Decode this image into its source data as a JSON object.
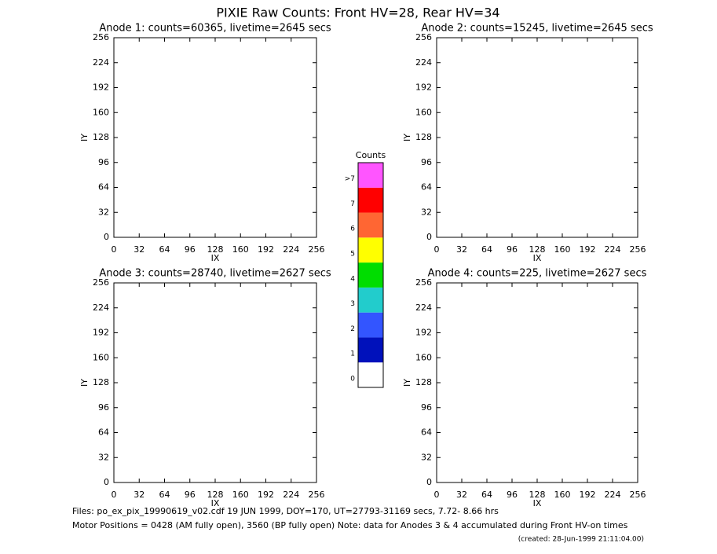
{
  "title": "PIXIE Raw Counts:  Front HV=28, Rear HV=34",
  "chart_data": [
    {
      "type": "heatmap",
      "title": "Anode 1: counts=60365, livetime=2645 secs",
      "xlabel": "IX",
      "ylabel": "IY",
      "xlim": [
        0,
        256
      ],
      "ylim": [
        0,
        256
      ],
      "xticks": [
        0,
        32,
        64,
        96,
        128,
        160,
        192,
        224,
        256
      ],
      "yticks": [
        0,
        32,
        64,
        96,
        128,
        160,
        192,
        224,
        256
      ]
    },
    {
      "type": "heatmap",
      "title": "Anode 2: counts=15245, livetime=2645 secs",
      "xlabel": "IX",
      "ylabel": "IY",
      "xlim": [
        0,
        256
      ],
      "ylim": [
        0,
        256
      ],
      "xticks": [
        0,
        32,
        64,
        96,
        128,
        160,
        192,
        224,
        256
      ],
      "yticks": [
        0,
        32,
        64,
        96,
        128,
        160,
        192,
        224,
        256
      ]
    },
    {
      "type": "heatmap",
      "title": "Anode 3: counts=28740, livetime=2627 secs",
      "xlabel": "IX",
      "ylabel": "IY",
      "xlim": [
        0,
        256
      ],
      "ylim": [
        0,
        256
      ],
      "xticks": [
        0,
        32,
        64,
        96,
        128,
        160,
        192,
        224,
        256
      ],
      "yticks": [
        0,
        32,
        64,
        96,
        128,
        160,
        192,
        224,
        256
      ]
    },
    {
      "type": "heatmap",
      "title": "Anode 4: counts=225, livetime=2627 secs",
      "xlabel": "IX",
      "ylabel": "IY",
      "xlim": [
        0,
        256
      ],
      "ylim": [
        0,
        256
      ],
      "xticks": [
        0,
        32,
        64,
        96,
        128,
        160,
        192,
        224,
        256
      ],
      "yticks": [
        0,
        32,
        64,
        96,
        128,
        160,
        192,
        224,
        256
      ]
    }
  ],
  "colorbar": {
    "title": "Counts",
    "labels": [
      "0",
      "1",
      "2",
      "3",
      "4",
      "5",
      "6",
      "7",
      ">7"
    ],
    "colors": [
      "#ffffff",
      "#0011bb",
      "#3355ff",
      "#22cccc",
      "#00dd00",
      "#ffff00",
      "#ff6633",
      "#ff0000",
      "#ff55ff"
    ]
  },
  "footer": [
    "Files: po_ex_pix_19990619_v02.cdf    19 JUN 1999, DOY=170, UT=27793-31169 secs,  7.72- 8.66 hrs",
    "Motor Positions = 0428 (AM fully open), 3560 (BP fully open)    Note: data for Anodes 3 & 4 accumulated during Front HV-on times",
    "(created: 28-Jun-1999 21:11:04.00)"
  ]
}
